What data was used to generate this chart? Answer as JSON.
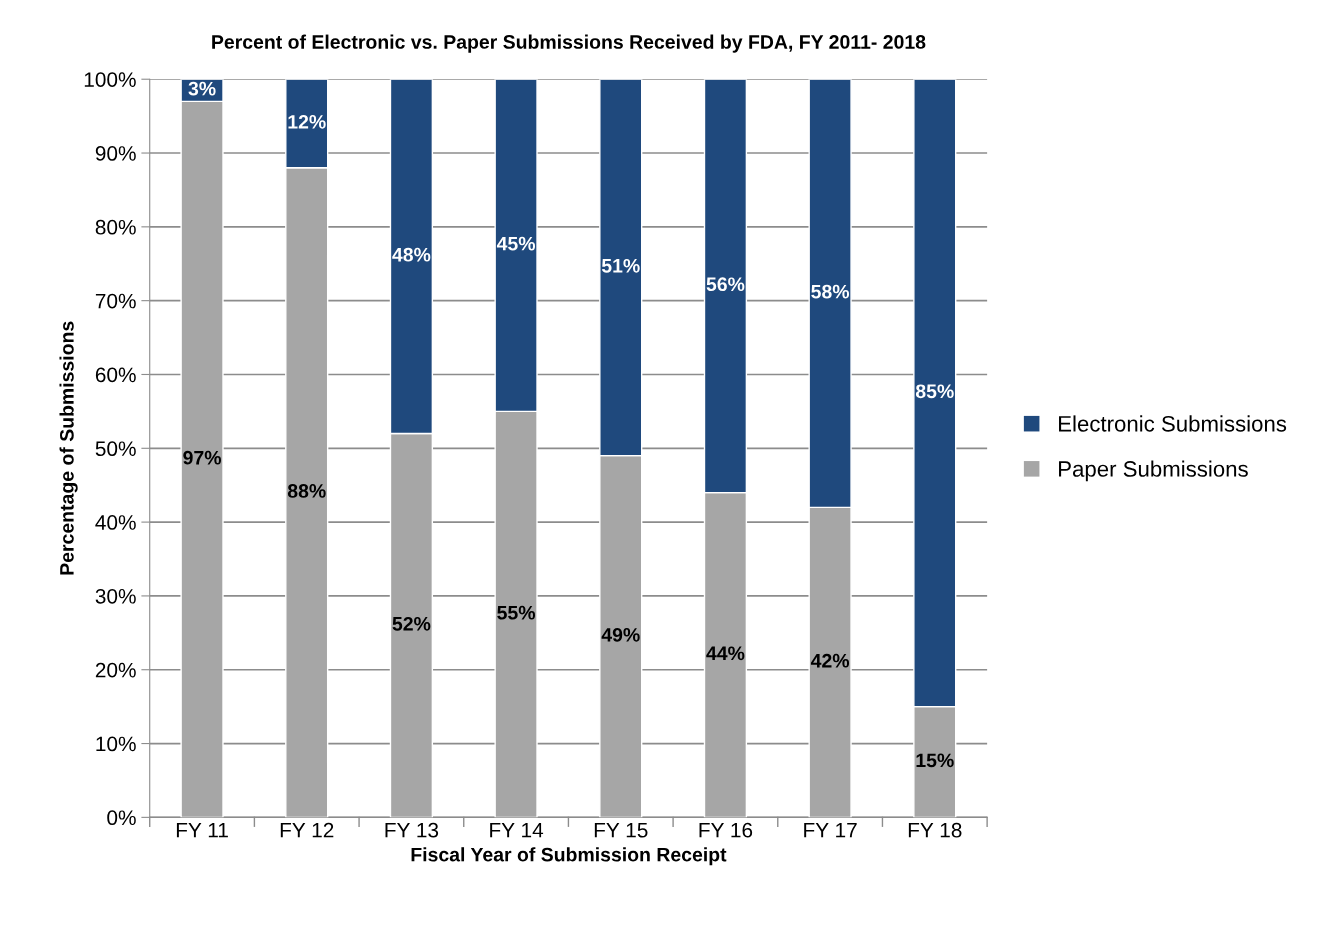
{
  "chart_data": {
    "type": "bar",
    "title": "Percent of Electronic vs. Paper Submissions Received by FDA, FY 2011- 2018",
    "xlabel": "Fiscal Year of Submission Receipt",
    "ylabel": "Percentage of Submissions",
    "categories": [
      "FY 11",
      "FY 12",
      "FY 13",
      "FY 14",
      "FY 15",
      "FY 16",
      "FY 17",
      "FY 18"
    ],
    "stacked": true,
    "series": [
      {
        "name": "Paper Submissions",
        "color": "#a6a6a6",
        "values": [
          97,
          88,
          52,
          55,
          49,
          44,
          42,
          15
        ],
        "value_labels": [
          "97%",
          "88%",
          "52%",
          "55%",
          "49%",
          "44%",
          "42%",
          "15%"
        ]
      },
      {
        "name": "Electronic Submissions",
        "color": "#1f497d",
        "values": [
          3,
          12,
          48,
          45,
          51,
          56,
          58,
          85
        ],
        "value_labels": [
          "3%",
          "12%",
          "48%",
          "45%",
          "51%",
          "56%",
          "58%",
          "85%"
        ]
      }
    ],
    "ylim": [
      0,
      100
    ],
    "yticks": [
      {
        "value": 0,
        "label": "0%"
      },
      {
        "value": 10,
        "label": "10%"
      },
      {
        "value": 20,
        "label": "20%"
      },
      {
        "value": 30,
        "label": "30%"
      },
      {
        "value": 40,
        "label": "40%"
      },
      {
        "value": 50,
        "label": "50%"
      },
      {
        "value": 60,
        "label": "60%"
      },
      {
        "value": 70,
        "label": "70%"
      },
      {
        "value": 80,
        "label": "80%"
      },
      {
        "value": 90,
        "label": "90%"
      },
      {
        "value": 100,
        "label": "100%"
      }
    ],
    "grid": "y",
    "legend": "right"
  }
}
